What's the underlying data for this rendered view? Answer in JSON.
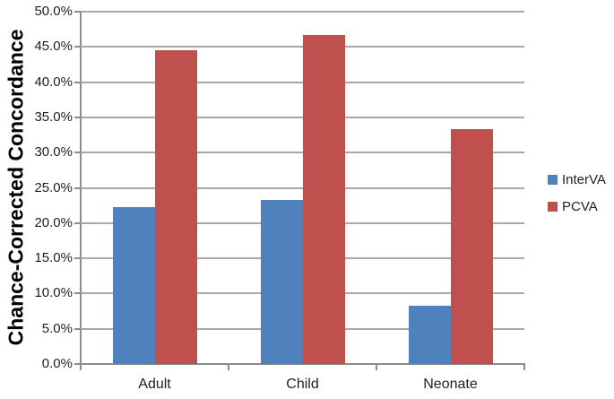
{
  "chart_data": {
    "type": "bar",
    "categories": [
      "Adult",
      "Child",
      "Neonate"
    ],
    "series": [
      {
        "name": "InterVA",
        "color": "#4F81BD",
        "values": [
          22.3,
          23.3,
          8.3
        ]
      },
      {
        "name": "PCVA",
        "color": "#C0504D",
        "values": [
          44.5,
          46.7,
          33.3
        ]
      }
    ],
    "ylabel": "Chance-Corrected Concordance",
    "ylim": [
      0,
      50
    ],
    "ytick_step": 5,
    "ytick_labels": [
      "0.0%",
      "5.0%",
      "10.0%",
      "15.0%",
      "20.0%",
      "25.0%",
      "30.0%",
      "35.0%",
      "40.0%",
      "45.0%",
      "50.0%"
    ],
    "grid": true,
    "legend_position": "right",
    "colors": {
      "gridline": "#A8A8A8",
      "axis": "#8C8C8C",
      "text": "#1F1F1F"
    }
  }
}
